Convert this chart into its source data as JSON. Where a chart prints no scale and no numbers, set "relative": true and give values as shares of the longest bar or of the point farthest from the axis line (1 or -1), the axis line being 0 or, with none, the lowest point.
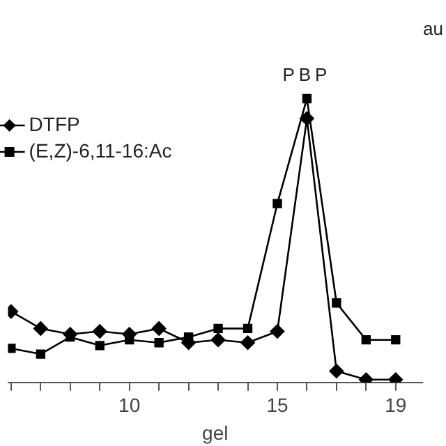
{
  "chart_data": {
    "type": "line",
    "relative": true,
    "xlabel": "gel",
    "x": [
      6,
      7,
      8,
      9,
      10,
      11,
      12,
      13,
      14,
      15,
      16,
      17,
      18,
      19
    ],
    "xlim": [
      5.9,
      19.9
    ],
    "xticks": [
      {
        "value": 6,
        "label": null
      },
      {
        "value": 7,
        "label": null
      },
      {
        "value": 8,
        "label": null
      },
      {
        "value": 9,
        "label": null
      },
      10,
      {
        "value": 11,
        "label": null
      },
      {
        "value": 12,
        "label": null
      },
      {
        "value": 13,
        "label": null
      },
      {
        "value": 14,
        "label": null
      },
      15,
      {
        "value": 16,
        "label": null
      },
      {
        "value": 17,
        "label": null
      },
      {
        "value": 18,
        "label": null
      },
      19
    ],
    "series": [
      {
        "name": "DTFP",
        "color": "#000000",
        "marker": "diamond",
        "values": [
          0.25,
          0.19,
          0.17,
          0.18,
          0.17,
          0.19,
          0.14,
          0.15,
          0.14,
          0.18,
          0.93,
          0.04,
          0.01,
          0.01
        ]
      },
      {
        "name": "(E,Z)-6,11-16:Ac",
        "color": "#000000",
        "marker": "square",
        "values": [
          0.12,
          0.1,
          0.16,
          0.13,
          0.15,
          0.14,
          0.16,
          0.19,
          0.19,
          0.63,
          1,
          0.28,
          0.15,
          0.15
        ]
      }
    ],
    "annotations": [
      {
        "text": "PBP",
        "x": 16,
        "y": 1
      },
      "au"
    ],
    "legend": "top left",
    "grid": false,
    "line_style": "solid"
  }
}
